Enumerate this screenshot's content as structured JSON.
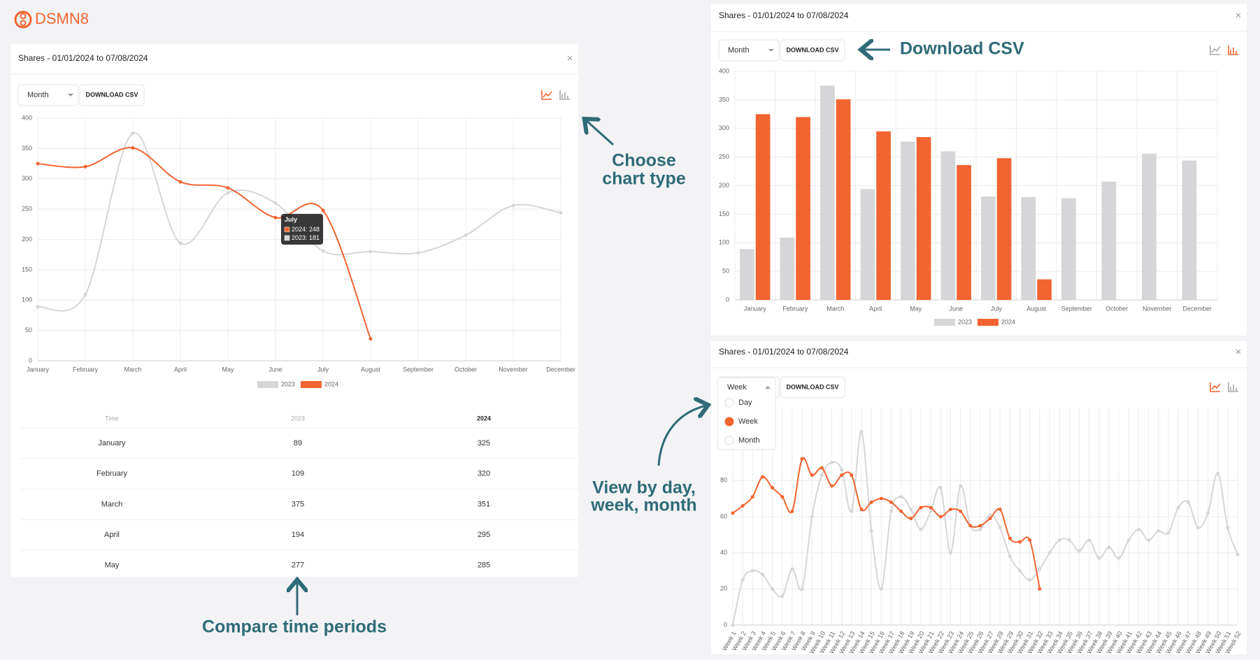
{
  "logo": "DSMN8",
  "panels": [
    {
      "title": "Shares - 01/01/2024 to 07/08/2024",
      "close": "×",
      "period_select": "Month",
      "download": "DOWNLOAD CSV",
      "chart_data": {
        "type": "line",
        "categories": [
          "January",
          "February",
          "March",
          "April",
          "May",
          "June",
          "July",
          "August",
          "September",
          "October",
          "November",
          "December"
        ],
        "series": [
          {
            "name": "2023",
            "color": "#d6d6d8",
            "values": [
              89,
              109,
              375,
              194,
              277,
              260,
              181,
              180,
              178,
              207,
              256,
              244
            ]
          },
          {
            "name": "2024",
            "color": "#f26430",
            "values": [
              325,
              320,
              351,
              295,
              285,
              236,
              248,
              36,
              null,
              null,
              null,
              null
            ]
          }
        ],
        "ylim": [
          0,
          400
        ],
        "yticks": [
          0,
          50,
          100,
          150,
          200,
          250,
          300,
          350,
          400
        ],
        "grid": true,
        "legend": "bottom",
        "tooltip": {
          "title": "July",
          "lines": [
            "2024: 248",
            "2023: 181"
          ]
        }
      },
      "table": {
        "header": [
          "Time",
          "2023",
          "2024"
        ],
        "rows": [
          [
            "January",
            89,
            325
          ],
          [
            "February",
            109,
            320
          ],
          [
            "March",
            375,
            351
          ],
          [
            "April",
            194,
            295
          ],
          [
            "May",
            277,
            285
          ]
        ]
      }
    },
    {
      "title": "Shares - 01/01/2024 to 07/08/2024",
      "close": "×",
      "period_select": "Month",
      "download": "DOWNLOAD CSV",
      "chart_data": {
        "type": "bar",
        "categories": [
          "January",
          "February",
          "March",
          "April",
          "May",
          "June",
          "July",
          "August",
          "September",
          "October",
          "November",
          "December"
        ],
        "series": [
          {
            "name": "2023",
            "color": "#d6d6d8",
            "values": [
              89,
              109,
              375,
              194,
              277,
              260,
              181,
              180,
              178,
              207,
              256,
              244
            ]
          },
          {
            "name": "2024",
            "color": "#f26430",
            "values": [
              325,
              320,
              351,
              295,
              285,
              236,
              248,
              36,
              null,
              null,
              null,
              null
            ]
          }
        ],
        "ylim": [
          0,
          400
        ],
        "yticks": [
          0,
          50,
          100,
          150,
          200,
          250,
          300,
          350,
          400
        ],
        "grid": true,
        "legend": "bottom"
      }
    },
    {
      "title": "Shares - 01/01/2024 to 07/08/2024",
      "close": "×",
      "period_select": "Week",
      "period_options": [
        "Day",
        "Week",
        "Month"
      ],
      "download": "DOWNLOAD CSV",
      "chart_data": {
        "type": "line",
        "categories": [
          "Week 1",
          "Week 2",
          "Week 3",
          "Week 4",
          "Week 5",
          "Week 6",
          "Week 7",
          "Week 8",
          "Week 9",
          "Week 10",
          "Week 11",
          "Week 12",
          "Week 13",
          "Week 14",
          "Week 15",
          "Week 16",
          "Week 17",
          "Week 18",
          "Week 19",
          "Week 20",
          "Week 21",
          "Week 22",
          "Week 23",
          "Week 24",
          "Week 25",
          "Week 26",
          "Week 27",
          "Week 28",
          "Week 29",
          "Week 30",
          "Week 31",
          "Week 32",
          "Week 33",
          "Week 34",
          "Week 35",
          "Week 36",
          "Week 37",
          "Week 38",
          "Week 39",
          "Week 40",
          "Week 41",
          "Week 42",
          "Week 43",
          "Week 44",
          "Week 45",
          "Week 46",
          "Week 47",
          "Week 48",
          "Week 49",
          "Week 50",
          "Week 51",
          "Week 52"
        ],
        "series": [
          {
            "name": "2023",
            "color": "#d6d6d8",
            "values": [
              0,
              25,
              30,
              28,
              20,
              16,
              31,
              20,
              60,
              83,
              90,
              86,
              63,
              107,
              52,
              20,
              63,
              71,
              64,
              53,
              63,
              76,
              40,
              77,
              55,
              53,
              61,
              54,
              38,
              30,
              25,
              31,
              40,
              47,
              47,
              41,
              47,
              37,
              43,
              37,
              47,
              53,
              47,
              52,
              51,
              65,
              68,
              54,
              62,
              84,
              54,
              39
            ]
          },
          {
            "name": "2024",
            "color": "#f26430",
            "values": [
              62,
              66,
              71,
              82,
              76,
              71,
              63,
              92,
              83,
              87,
              77,
              83,
              83,
              64,
              68,
              70,
              68,
              63,
              59,
              65,
              65,
              60,
              64,
              63,
              55,
              55,
              59,
              64,
              48,
              46,
              47,
              20,
              null,
              null,
              null,
              null,
              null,
              null,
              null,
              null,
              null,
              null,
              null,
              null,
              null,
              null,
              null,
              null,
              null,
              null,
              null,
              null
            ]
          }
        ],
        "ylim": [
          0,
          120
        ],
        "yticks": [
          0,
          20,
          40,
          60,
          80
        ],
        "grid": true
      }
    }
  ],
  "annotations": [
    "Choose",
    "chart type",
    "Download CSV",
    "View by day,",
    "week, month",
    "Compare time periods"
  ]
}
